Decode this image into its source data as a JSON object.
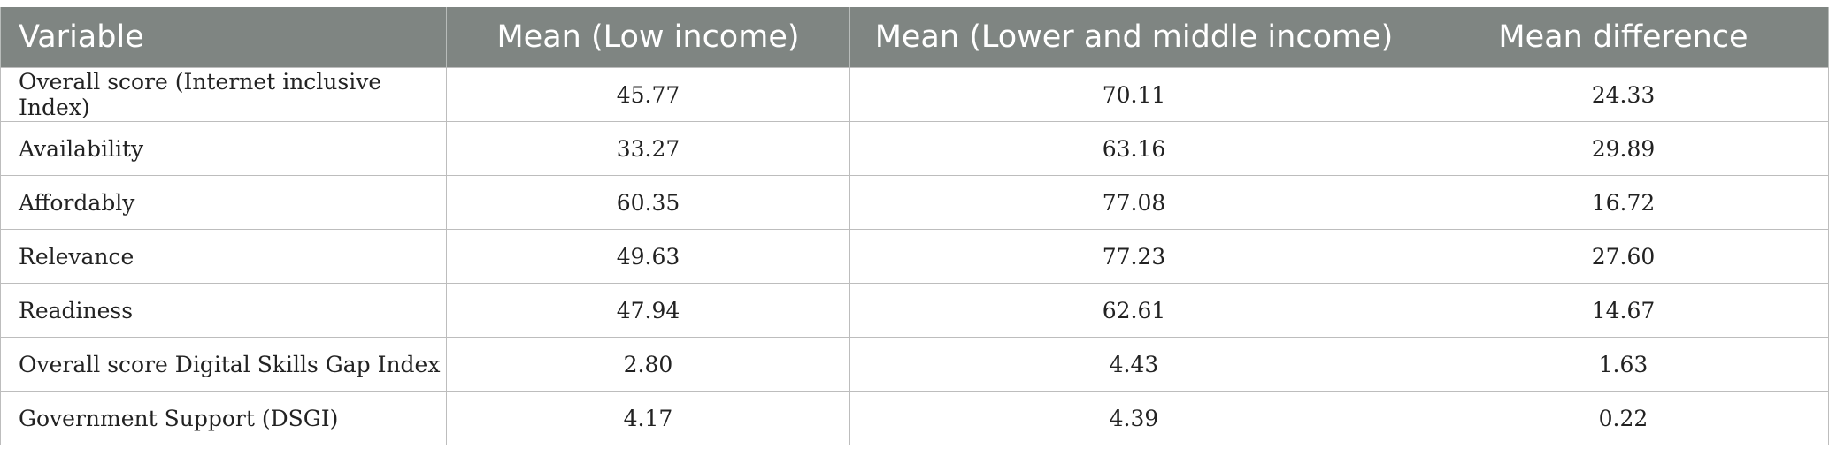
{
  "table": {
    "headers": [
      "Variable",
      "Mean (Low income)",
      "Mean (Lower and middle income)",
      "Mean difference"
    ],
    "rows": [
      [
        "Overall score (Internet inclusive Index)",
        "45.77",
        "70.11",
        "24.33"
      ],
      [
        "Availability",
        "33.27",
        "63.16",
        "29.89"
      ],
      [
        "Affordably",
        "60.35",
        "77.08",
        "16.72"
      ],
      [
        "Relevance",
        "49.63",
        "77.23",
        "27.60"
      ],
      [
        "Readiness",
        "47.94",
        "62.61",
        "14.67"
      ],
      [
        "Overall score Digital Skills Gap Index",
        "2.80",
        "4.43",
        "1.63"
      ],
      [
        "Government Support (DSGI)",
        "4.17",
        "4.39",
        "0.22"
      ]
    ]
  },
  "colors": {
    "header_bg": "#7f8582",
    "header_text": "#ffffff",
    "border": "#bdbdbd"
  }
}
